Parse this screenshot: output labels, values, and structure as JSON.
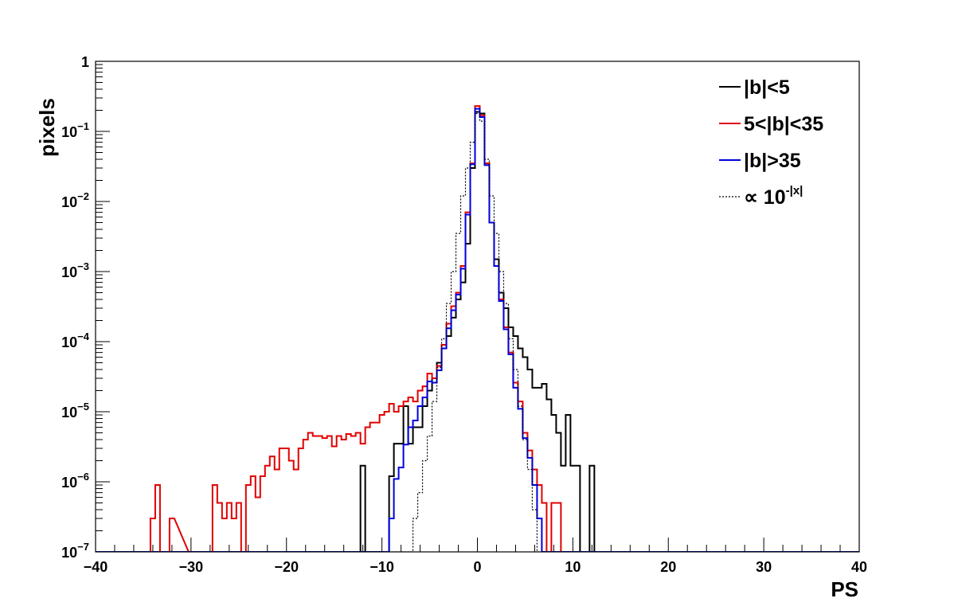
{
  "chart_data": {
    "type": "line",
    "xlabel": "PS",
    "ylabel": "pixels",
    "xlim": [
      -40,
      40
    ],
    "ylim": [
      1e-07,
      1
    ],
    "yscale": "log",
    "grid": false,
    "legend_position": "top-right",
    "x_ticks": [
      "−40",
      "−30",
      "−20",
      "−10",
      "0",
      "10",
      "20",
      "30",
      "40"
    ],
    "y_ticks": [
      {
        "base": "10",
        "exp": "−7"
      },
      {
        "base": "10",
        "exp": "−6"
      },
      {
        "base": "10",
        "exp": "−5"
      },
      {
        "base": "10",
        "exp": "−4"
      },
      {
        "base": "10",
        "exp": "−3"
      },
      {
        "base": "10",
        "exp": "−2"
      },
      {
        "base": "10",
        "exp": "−1"
      },
      {
        "base": "1",
        "exp": ""
      }
    ],
    "bin_width": 0.5,
    "series": [
      {
        "name": "|b|<5",
        "color": "#000000",
        "style": "solid",
        "points": [
          [
            -12,
            1.7e-06
          ],
          [
            -11.5,
            0
          ],
          [
            -9,
            1.2e-06
          ],
          [
            -8.5,
            3.5e-06
          ],
          [
            -8,
            3.5e-06
          ],
          [
            -7.5,
            1.2e-05
          ],
          [
            -7,
            3.5e-06
          ],
          [
            -6.5,
            6e-06
          ],
          [
            -6,
            6e-06
          ],
          [
            -5.5,
            1.2e-05
          ],
          [
            -5,
            2e-05
          ],
          [
            -4.5,
            3e-05
          ],
          [
            -4,
            5e-05
          ],
          [
            -3.5,
            8e-05
          ],
          [
            -3,
            0.00012
          ],
          [
            -2.5,
            0.00022
          ],
          [
            -2,
            0.0004
          ],
          [
            -1.5,
            0.0007
          ],
          [
            -1,
            0.0025
          ],
          [
            -0.5,
            0.03
          ],
          [
            0,
            0.19
          ],
          [
            0.5,
            0.18
          ],
          [
            1,
            0.035
          ],
          [
            1.5,
            0.005
          ],
          [
            2,
            0.0015
          ],
          [
            2.5,
            0.0005
          ],
          [
            3,
            0.0003
          ],
          [
            3.5,
            0.00016
          ],
          [
            4,
            0.00012
          ],
          [
            4.5,
            8e-05
          ],
          [
            5,
            6e-05
          ],
          [
            5.5,
            4e-05
          ],
          [
            6,
            2.2e-05
          ],
          [
            6.5,
            2.2e-05
          ],
          [
            7,
            2.5e-05
          ],
          [
            7.5,
            1.5e-05
          ],
          [
            8,
            9e-06
          ],
          [
            8.5,
            5e-06
          ],
          [
            9,
            1.7e-06
          ],
          [
            9.5,
            9e-06
          ],
          [
            10,
            1.7e-06
          ],
          [
            10.5,
            1.7e-06
          ],
          [
            11,
            0
          ],
          [
            12,
            1.7e-06
          ],
          [
            12.5,
            0
          ]
        ]
      },
      {
        "name": "5<|b|<35",
        "color": "#e00000",
        "style": "solid",
        "points": [
          [
            -34,
            3e-07
          ],
          [
            -33.5,
            9e-07
          ],
          [
            -33,
            0
          ],
          [
            -32,
            3e-07
          ],
          [
            -30,
            0
          ],
          [
            -27.5,
            9e-07
          ],
          [
            -27,
            5e-07
          ],
          [
            -26.5,
            3e-07
          ],
          [
            -26,
            5e-07
          ],
          [
            -25.5,
            3e-07
          ],
          [
            -25,
            5e-07
          ],
          [
            -24.5,
            0
          ],
          [
            -24,
            9e-07
          ],
          [
            -23.5,
            1.2e-06
          ],
          [
            -23,
            6e-07
          ],
          [
            -22.5,
            1.2e-06
          ],
          [
            -22,
            1.7e-06
          ],
          [
            -21.5,
            2.3e-06
          ],
          [
            -21,
            1.5e-06
          ],
          [
            -20.5,
            3e-06
          ],
          [
            -20,
            3e-06
          ],
          [
            -19.5,
            2e-06
          ],
          [
            -19,
            1.5e-06
          ],
          [
            -18.5,
            3e-06
          ],
          [
            -18,
            4e-06
          ],
          [
            -17.5,
            5e-06
          ],
          [
            -17,
            4.5e-06
          ],
          [
            -16.5,
            4.5e-06
          ],
          [
            -16,
            4.2e-06
          ],
          [
            -15.5,
            4.5e-06
          ],
          [
            -15,
            3.2e-06
          ],
          [
            -14.5,
            4.5e-06
          ],
          [
            -14,
            4e-06
          ],
          [
            -13.5,
            4.8e-06
          ],
          [
            -13,
            4.5e-06
          ],
          [
            -12.5,
            5e-06
          ],
          [
            -12,
            3.5e-06
          ],
          [
            -11.5,
            6e-06
          ],
          [
            -11,
            7e-06
          ],
          [
            -10.5,
            7e-06
          ],
          [
            -10,
            9e-06
          ],
          [
            -9.5,
            1e-05
          ],
          [
            -9,
            1.3e-05
          ],
          [
            -8.5,
            1e-05
          ],
          [
            -8,
            1.2e-05
          ],
          [
            -7.5,
            1.4e-05
          ],
          [
            -7,
            1.6e-05
          ],
          [
            -6.5,
            1.4e-05
          ],
          [
            -6,
            2e-05
          ],
          [
            -5.5,
            2.3e-05
          ],
          [
            -5,
            3.5e-05
          ],
          [
            -4.5,
            3e-05
          ],
          [
            -4,
            4.5e-05
          ],
          [
            -3.5,
            9e-05
          ],
          [
            -3,
            0.00018
          ],
          [
            -2.5,
            0.00032
          ],
          [
            -2,
            0.0005
          ],
          [
            -1.5,
            0.0012
          ],
          [
            -1,
            0.007
          ],
          [
            -0.5,
            0.035
          ],
          [
            0,
            0.23
          ],
          [
            0.5,
            0.17
          ],
          [
            1,
            0.035
          ],
          [
            1.5,
            0.005
          ],
          [
            2,
            0.0012
          ],
          [
            2.5,
            0.0004
          ],
          [
            3,
            0.00016
          ],
          [
            3.5,
            7e-05
          ],
          [
            4,
            2.6e-05
          ],
          [
            4.5,
            1.4e-05
          ],
          [
            5,
            5e-06
          ],
          [
            5.5,
            2.8e-06
          ],
          [
            6,
            1.5e-06
          ],
          [
            6.5,
            9e-07
          ],
          [
            7,
            5e-07
          ],
          [
            7.5,
            0
          ],
          [
            8,
            5e-07
          ],
          [
            8.5,
            5e-07
          ],
          [
            9,
            0
          ]
        ]
      },
      {
        "name": "|b|>35",
        "color": "#0000dd",
        "style": "solid",
        "points": [
          [
            -9,
            3e-07
          ],
          [
            -8.5,
            1.1e-06
          ],
          [
            -8,
            1.6e-06
          ],
          [
            -7.5,
            3.4e-06
          ],
          [
            -7,
            6e-06
          ],
          [
            -6.5,
            7.5e-06
          ],
          [
            -6,
            1.2e-05
          ],
          [
            -5.5,
            1.6e-05
          ],
          [
            -5,
            2.7e-05
          ],
          [
            -4.5,
            2.6e-05
          ],
          [
            -4,
            3.9e-05
          ],
          [
            -3.5,
            8e-05
          ],
          [
            -3,
            0.000155
          ],
          [
            -2.5,
            0.00028
          ],
          [
            -2,
            0.00047
          ],
          [
            -1.5,
            0.0011
          ],
          [
            -1,
            0.0065
          ],
          [
            -0.5,
            0.034
          ],
          [
            0,
            0.21
          ],
          [
            0.5,
            0.16
          ],
          [
            1,
            0.033
          ],
          [
            1.5,
            0.005
          ],
          [
            2,
            0.0012
          ],
          [
            2.5,
            0.00038
          ],
          [
            3,
            0.00015
          ],
          [
            3.5,
            6.6e-05
          ],
          [
            4,
            2.2e-05
          ],
          [
            4.5,
            1.1e-05
          ],
          [
            5,
            4.2e-06
          ],
          [
            5.5,
            2.2e-06
          ],
          [
            6,
            9e-07
          ],
          [
            6.5,
            3e-07
          ],
          [
            7,
            0
          ]
        ]
      },
      {
        "name": "∝ 10",
        "name_sup": "-|x|",
        "color": "#000000",
        "style": "dotted",
        "points": [
          [
            -6.5,
            3e-07
          ],
          [
            -6,
            7e-07
          ],
          [
            -5.5,
            2e-06
          ],
          [
            -5,
            4.5e-06
          ],
          [
            -4.5,
            1.4e-05
          ],
          [
            -4,
            4.3e-05
          ],
          [
            -3.5,
            0.00011
          ],
          [
            -3,
            0.00035
          ],
          [
            -2.5,
            0.001
          ],
          [
            -2,
            0.0035
          ],
          [
            -1.5,
            0.012
          ],
          [
            -1,
            0.03
          ],
          [
            -0.5,
            0.07
          ],
          [
            0,
            0.18
          ],
          [
            0.5,
            0.14
          ],
          [
            1,
            0.04
          ],
          [
            1.5,
            0.012
          ],
          [
            2,
            0.0035
          ],
          [
            2.5,
            0.001
          ],
          [
            3,
            0.00035
          ],
          [
            3.5,
            0.00011
          ],
          [
            4,
            4e-05
          ],
          [
            4.5,
            1.2e-05
          ],
          [
            5,
            4e-06
          ],
          [
            5.5,
            1.5e-06
          ],
          [
            6,
            4e-07
          ],
          [
            6.5,
            0
          ]
        ]
      }
    ]
  }
}
